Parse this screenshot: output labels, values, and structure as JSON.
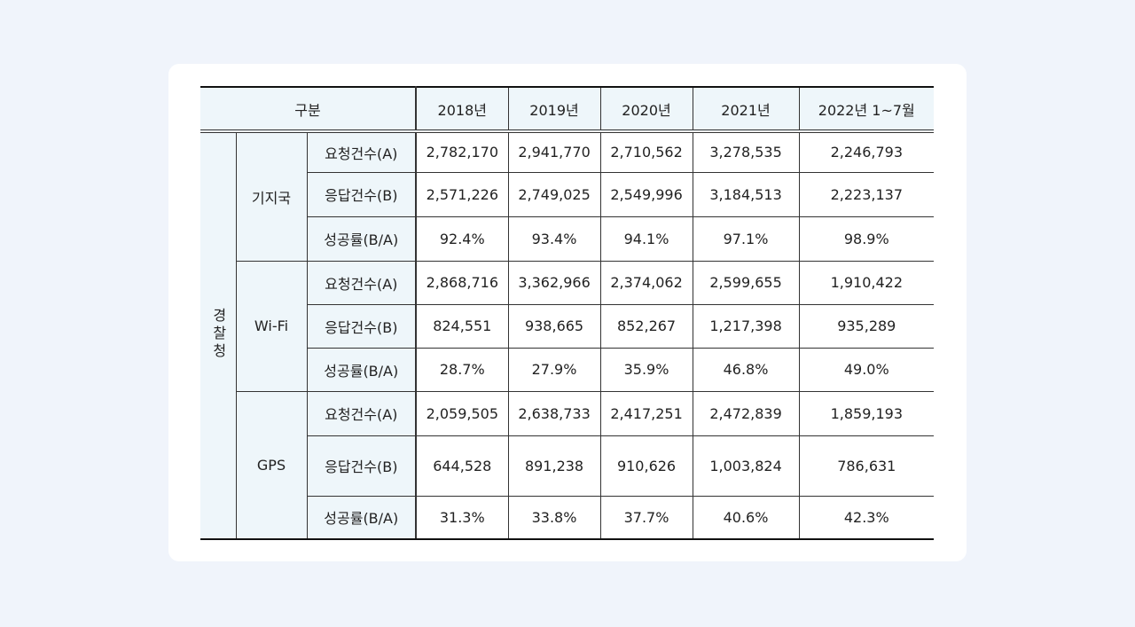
{
  "table": {
    "header": [
      "구분",
      "2018년",
      "2019년",
      "2020년",
      "2021년",
      "2022년  1~7월"
    ],
    "agency": "경찰청",
    "groups": [
      {
        "name": "기지국",
        "rows": [
          {
            "label": "요청건수(A)",
            "values": [
              "2,782,170",
              "2,941,770",
              "2,710,562",
              "3,278,535",
              "2,246,793"
            ]
          },
          {
            "label": "응답건수(B)",
            "values": [
              "2,571,226",
              "2,749,025",
              "2,549,996",
              "3,184,513",
              "2,223,137"
            ]
          },
          {
            "label": "성공률(B/A)",
            "values": [
              "92.4%",
              "93.4%",
              "94.1%",
              "97.1%",
              "98.9%"
            ]
          }
        ]
      },
      {
        "name": "Wi-Fi",
        "rows": [
          {
            "label": "요청건수(A)",
            "values": [
              "2,868,716",
              "3,362,966",
              "2,374,062",
              "2,599,655",
              "1,910,422"
            ]
          },
          {
            "label": "응답건수(B)",
            "values": [
              "824,551",
              "938,665",
              "852,267",
              "1,217,398",
              "935,289"
            ]
          },
          {
            "label": "성공률(B/A)",
            "values": [
              "28.7%",
              "27.9%",
              "35.9%",
              "46.8%",
              "49.0%"
            ]
          }
        ]
      },
      {
        "name": "GPS",
        "rows": [
          {
            "label": "요청건수(A)",
            "values": [
              "2,059,505",
              "2,638,733",
              "2,417,251",
              "2,472,839",
              "1,859,193"
            ]
          },
          {
            "label": "응답건수(B)",
            "values": [
              "644,528",
              "891,238",
              "910,626",
              "1,003,824",
              "786,631"
            ]
          },
          {
            "label": "성공률(B/A)",
            "values": [
              "31.3%",
              "33.8%",
              "37.7%",
              "40.6%",
              "42.3%"
            ]
          }
        ]
      }
    ]
  }
}
